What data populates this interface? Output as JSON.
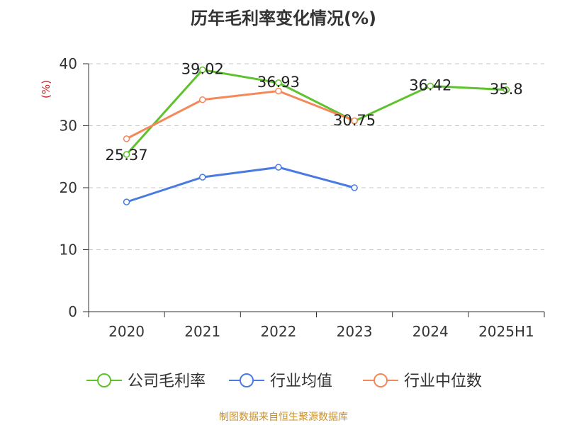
{
  "chart_data": {
    "type": "line",
    "title": "历年毛利率变化情况(%)",
    "ylabel": "(%)",
    "xlabel": "",
    "categories": [
      "2020",
      "2021",
      "2022",
      "2023",
      "2024",
      "2025H1"
    ],
    "ylim": [
      0,
      40
    ],
    "yticks": [
      0,
      10,
      20,
      30,
      40
    ],
    "grid": true,
    "legend_position": "bottom",
    "series": [
      {
        "name": "公司毛利率",
        "color": "#5ec22c",
        "values": [
          25.37,
          39.02,
          36.93,
          30.75,
          36.42,
          35.8
        ],
        "labels": [
          "25.37",
          "39.02",
          "36.93",
          "30.75",
          "36.42",
          "35.8"
        ]
      },
      {
        "name": "行业均值",
        "color": "#4a7be0",
        "values": [
          17.7,
          21.7,
          23.3,
          20.0,
          null,
          null
        ]
      },
      {
        "name": "行业中位数",
        "color": "#f5885a",
        "values": [
          27.9,
          34.2,
          35.6,
          30.8,
          null,
          null
        ]
      }
    ]
  },
  "source_text": "制图数据来自恒生聚源数据库"
}
